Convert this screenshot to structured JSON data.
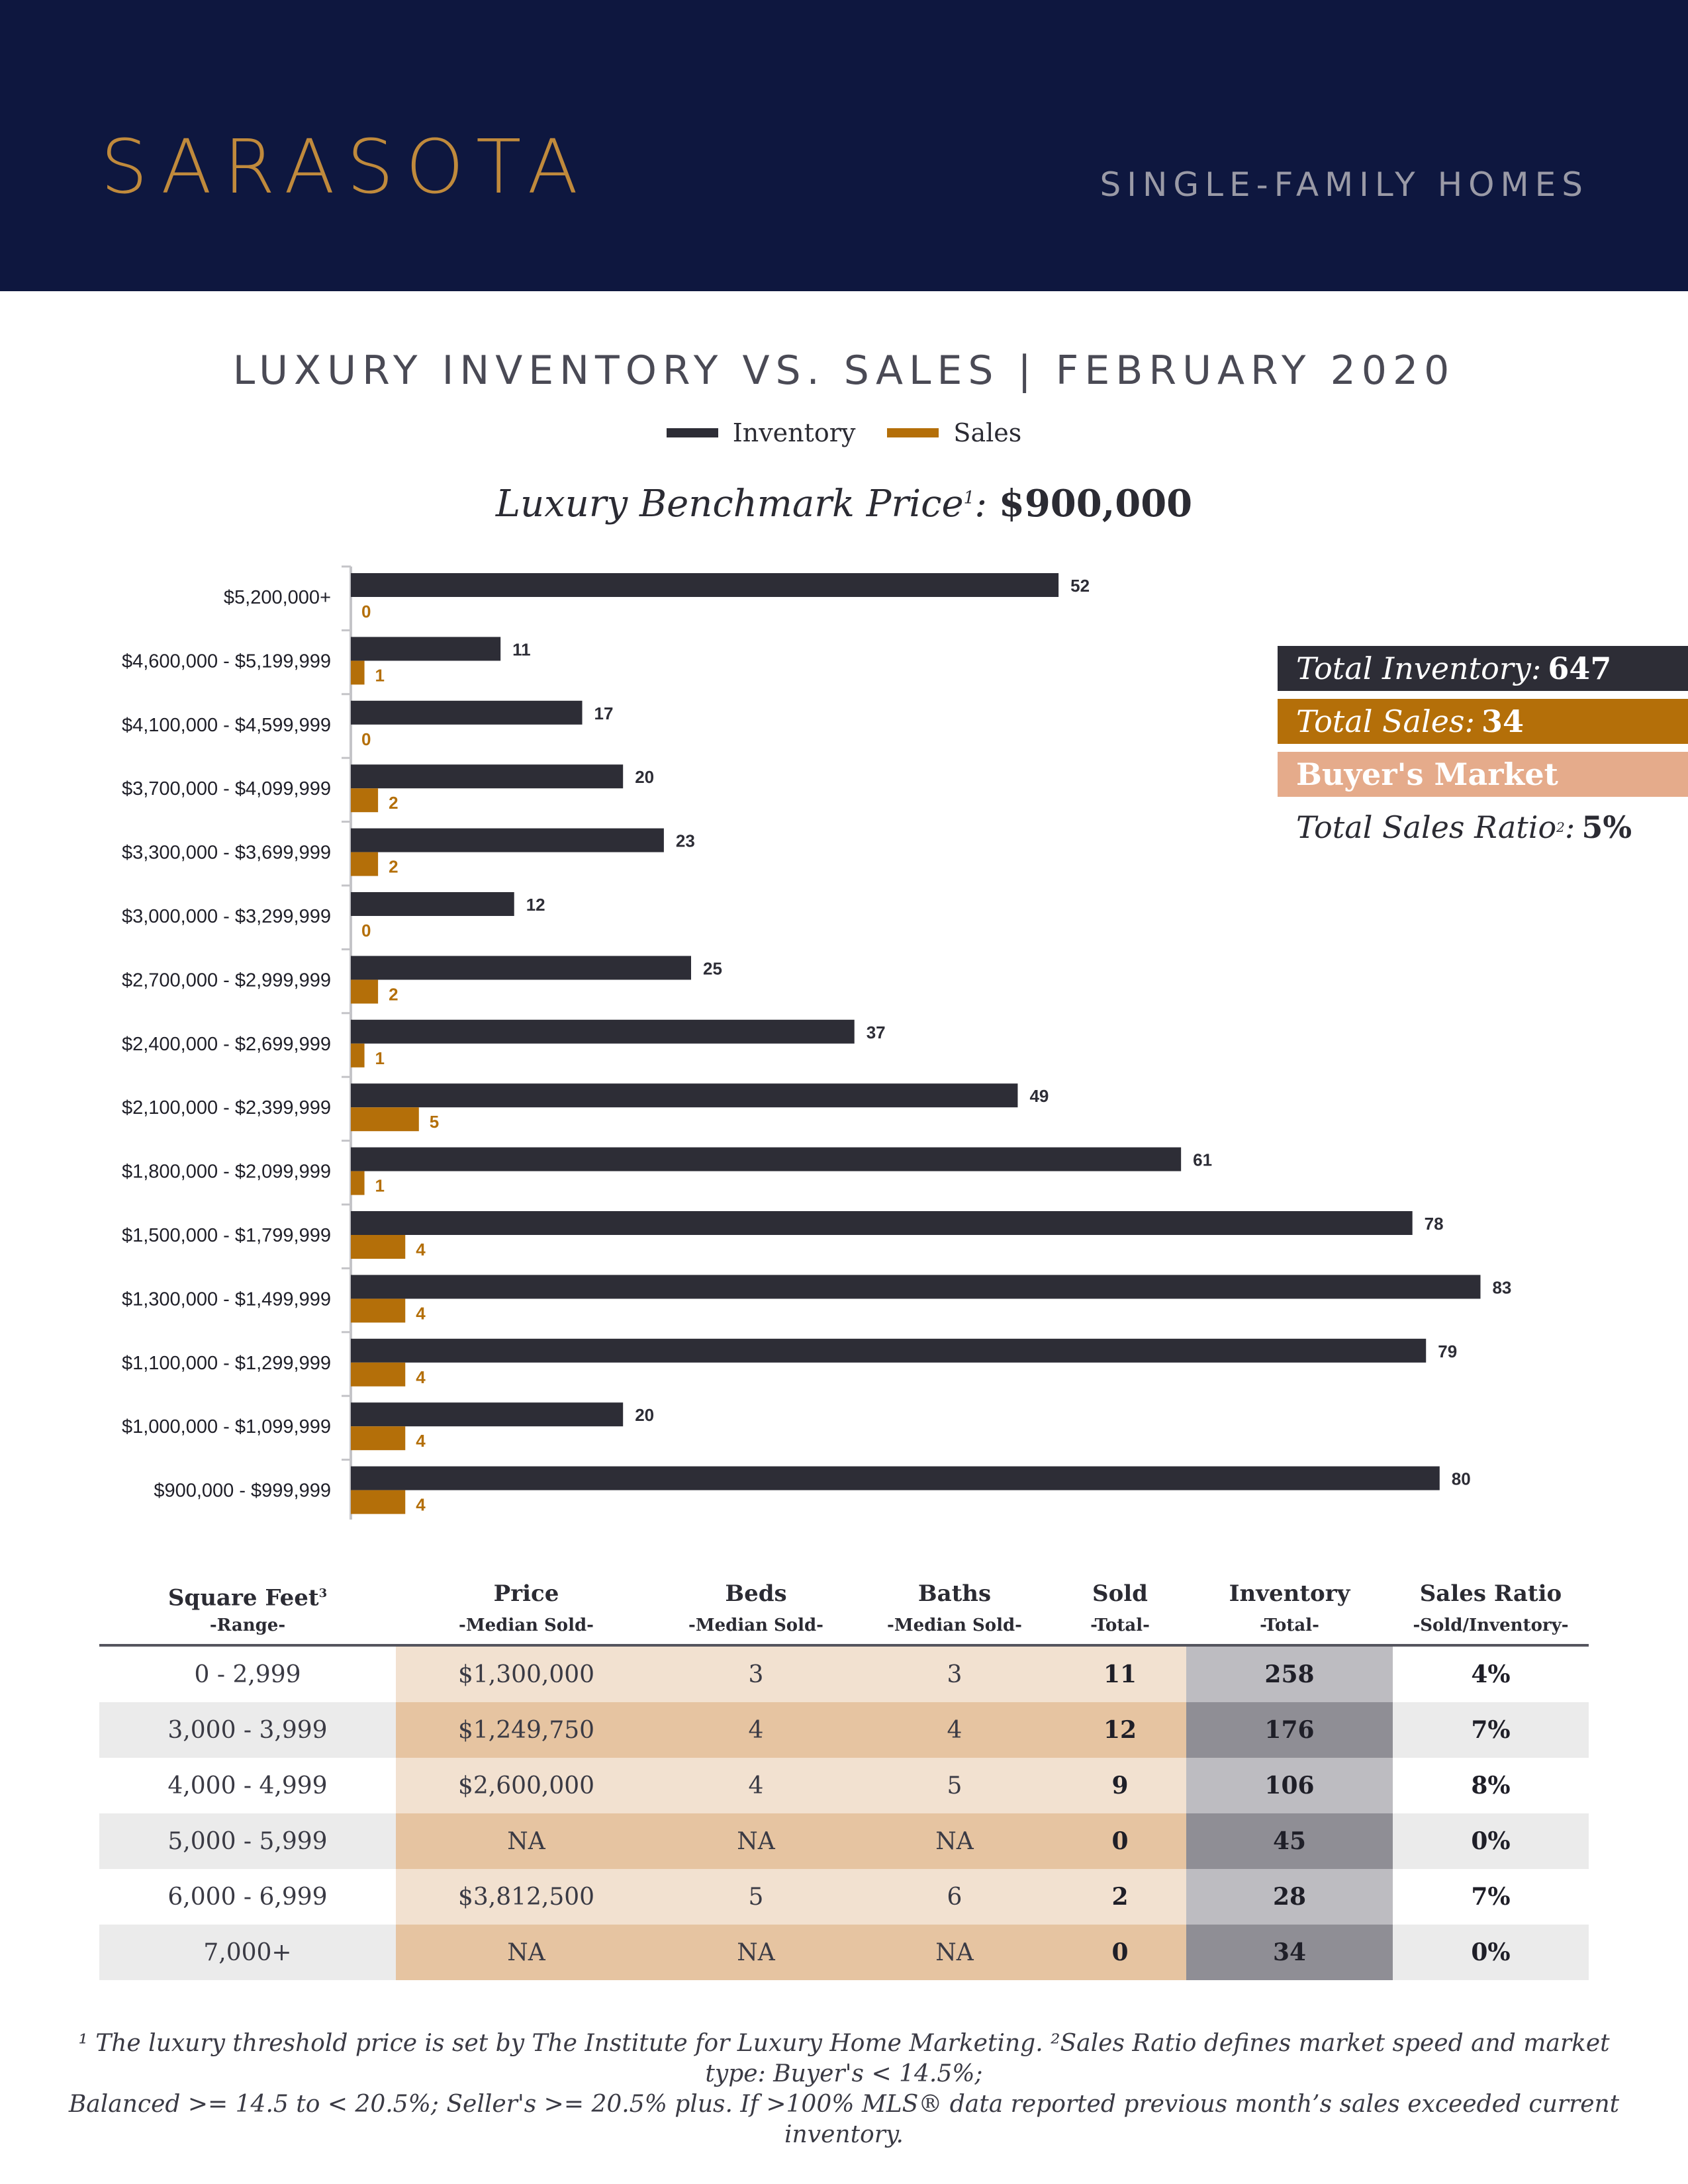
{
  "header": {
    "city": "SARASOTA",
    "subtitle": "SINGLE-FAMILY HOMES"
  },
  "chart_title": "LUXURY INVENTORY VS. SALES | FEBRUARY 2020",
  "benchmark": {
    "label": "Luxury Benchmark Price",
    "sup": "1",
    "colon": ":",
    "value": "$900,000"
  },
  "colors": {
    "header_bg": "#0e173f",
    "inventory": "#2d2d36",
    "sales": "#b46f09",
    "market": "#e5ab8b",
    "accent": "#c08a3c"
  },
  "summary": {
    "inventory_label": "Total Inventory:",
    "inventory_value": "647",
    "sales_label": "Total Sales:",
    "sales_value": "34",
    "market_label": "Buyer's Market",
    "ratio_label": "Total Sales Ratio",
    "ratio_sup": "2",
    "ratio_colon": ":",
    "ratio_value": "5%"
  },
  "chart_data": {
    "type": "bar",
    "orientation": "horizontal",
    "categories": [
      "$5,200,000+",
      "$4,600,000 - $5,199,999",
      "$4,100,000 - $4,599,999",
      "$3,700,000 - $4,099,999",
      "$3,300,000 - $3,699,999",
      "$3,000,000 - $3,299,999",
      "$2,700,000 - $2,999,999",
      "$2,400,000 - $2,699,999",
      "$2,100,000 - $2,399,999",
      "$1,800,000 - $2,099,999",
      "$1,500,000 - $1,799,999",
      "$1,300,000 - $1,499,999",
      "$1,100,000 - $1,299,999",
      "$1,000,000 - $1,099,999",
      "$900,000 - $999,999"
    ],
    "series": [
      {
        "name": "Inventory",
        "color": "#2d2d36",
        "values": [
          52,
          11,
          17,
          20,
          23,
          12,
          25,
          37,
          49,
          61,
          78,
          83,
          79,
          20,
          80
        ]
      },
      {
        "name": "Sales",
        "color": "#b46f09",
        "values": [
          0,
          1,
          0,
          2,
          2,
          0,
          2,
          1,
          5,
          1,
          4,
          4,
          4,
          4,
          4
        ]
      }
    ],
    "legend": "top-center",
    "grid": false
  },
  "table": {
    "headers": [
      {
        "title": "Square Feet",
        "sup": "3",
        "sub": "-Range-"
      },
      {
        "title": "Price",
        "sup": "",
        "sub": "-Median Sold-"
      },
      {
        "title": "Beds",
        "sup": "",
        "sub": "-Median Sold-"
      },
      {
        "title": "Baths",
        "sup": "",
        "sub": "-Median Sold-"
      },
      {
        "title": "Sold",
        "sup": "",
        "sub": "-Total-"
      },
      {
        "title": "Inventory",
        "sup": "",
        "sub": "-Total-"
      },
      {
        "title": "Sales Ratio",
        "sup": "",
        "sub": "-Sold/Inventory-"
      }
    ],
    "rows": [
      [
        "0 - 2,999",
        "$1,300,000",
        "3",
        "3",
        "11",
        "258",
        "4%"
      ],
      [
        "3,000 - 3,999",
        "$1,249,750",
        "4",
        "4",
        "12",
        "176",
        "7%"
      ],
      [
        "4,000 - 4,999",
        "$2,600,000",
        "4",
        "5",
        "9",
        "106",
        "8%"
      ],
      [
        "5,000 - 5,999",
        "NA",
        "NA",
        "NA",
        "0",
        "45",
        "0%"
      ],
      [
        "6,000 - 6,999",
        "$3,812,500",
        "5",
        "6",
        "2",
        "28",
        "7%"
      ],
      [
        "7,000+",
        "NA",
        "NA",
        "NA",
        "0",
        "34",
        "0%"
      ]
    ]
  },
  "footnote": {
    "line1": "¹ The luxury threshold price is set by The Institute for Luxury Home Marketing. ²Sales Ratio defines market speed and market type: Buyer's < 14.5%;",
    "line2": "Balanced >= 14.5 to < 20.5%; Seller's >= 20.5% plus. If >100% MLS® data reported previous month’s sales exceeded current inventory."
  }
}
